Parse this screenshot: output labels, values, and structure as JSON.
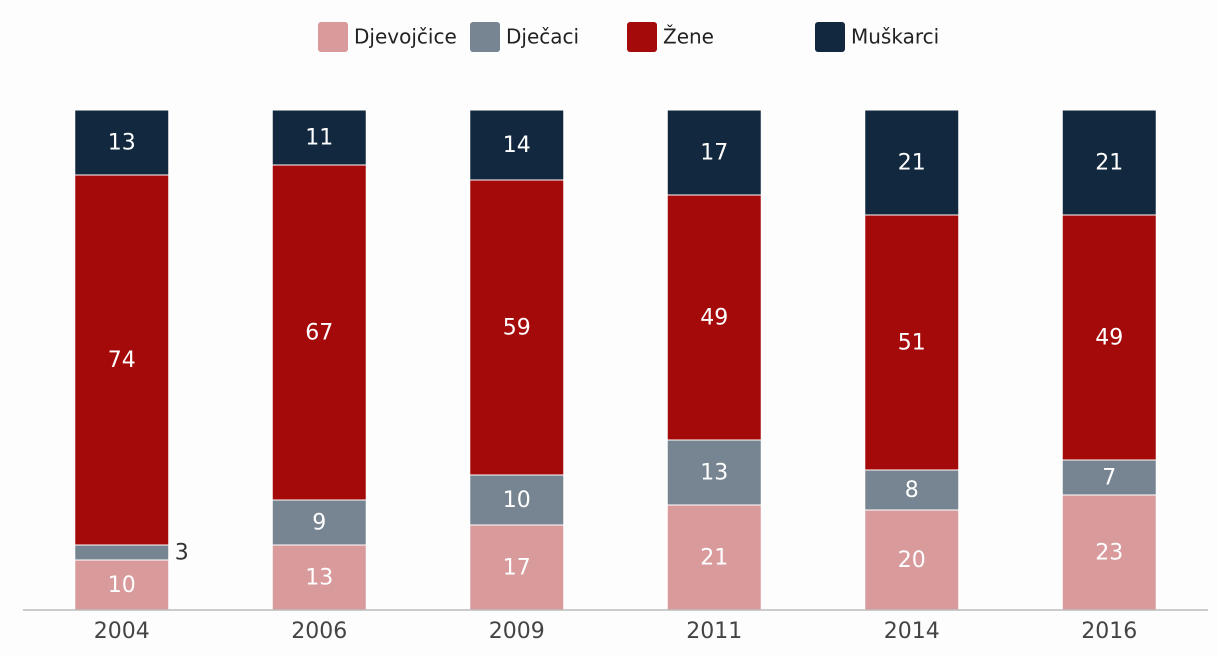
{
  "chart_data": {
    "type": "stacked_bar",
    "categories": [
      "2004",
      "2006",
      "2009",
      "2011",
      "2014",
      "2016"
    ],
    "series": [
      {
        "name": "Djevojčice",
        "color": "#d99a9c",
        "values": [
          10,
          13,
          17,
          21,
          20,
          23
        ]
      },
      {
        "name": "Dječaci",
        "color": "#778592",
        "values": [
          3,
          9,
          10,
          13,
          8,
          7
        ]
      },
      {
        "name": "Žene",
        "color": "#a50a0a",
        "values": [
          74,
          67,
          59,
          49,
          51,
          49
        ]
      },
      {
        "name": "Muškarci",
        "color": "#11283e",
        "values": [
          13,
          11,
          14,
          17,
          21,
          21
        ]
      }
    ],
    "ylim": [
      0,
      100
    ],
    "legend": "top"
  }
}
